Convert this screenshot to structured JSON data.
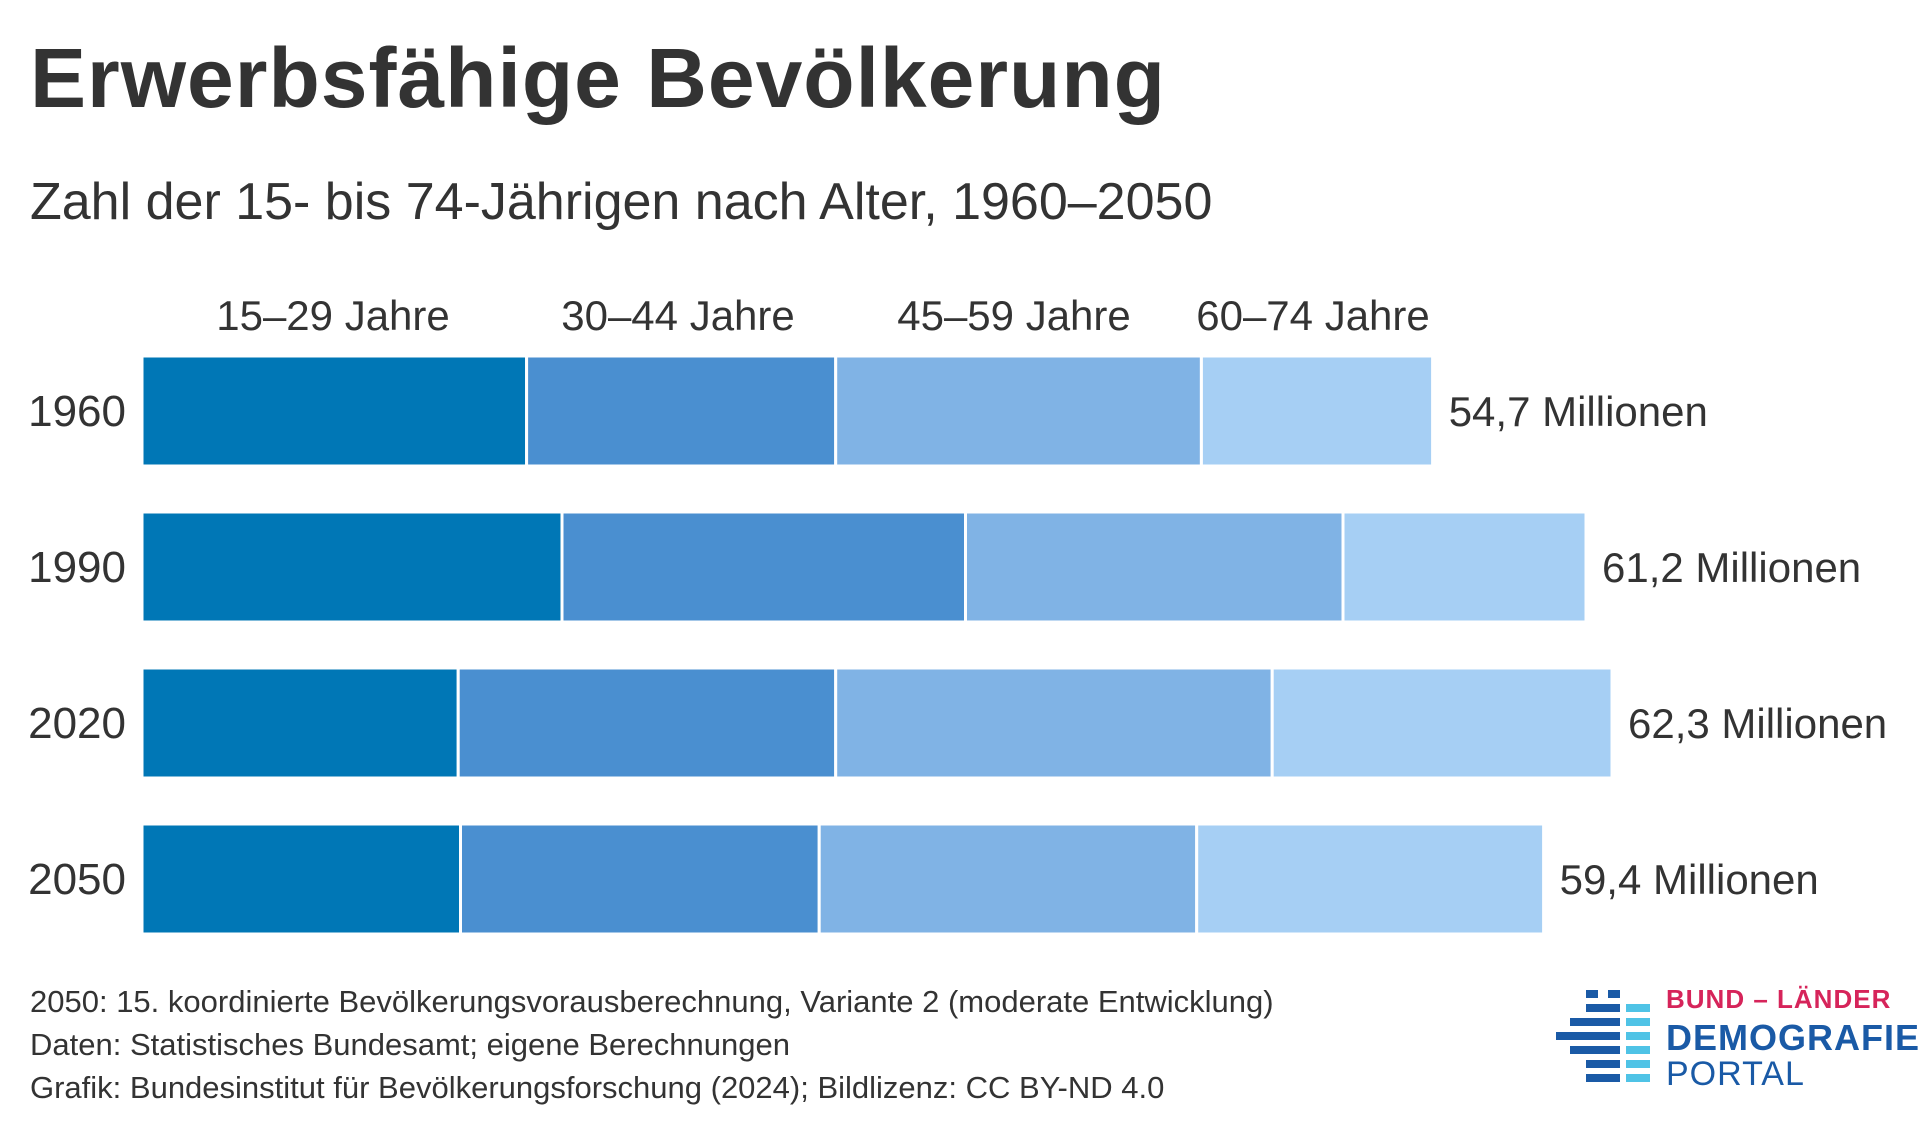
{
  "header": {
    "title": "Erwerbsfähige Bevölkerung",
    "subtitle": "Zahl der 15- bis 74-Jährigen nach Alter, 1960–2050"
  },
  "chart_data": {
    "type": "bar",
    "orientation": "horizontal",
    "stacked": true,
    "categories": [
      "1960",
      "1990",
      "2020",
      "2050"
    ],
    "series": [
      {
        "name": "15–29 Jahre",
        "color": "#0077b6",
        "values": [
          16.3,
          17.8,
          13.4,
          13.5
        ]
      },
      {
        "name": "30–44 Jahre",
        "color": "#4a8fd0",
        "values": [
          13.1,
          17.1,
          16.0,
          15.2
        ]
      },
      {
        "name": "45–59 Jahre",
        "color": "#80b3e5",
        "values": [
          15.5,
          16.0,
          18.5,
          16.0
        ]
      },
      {
        "name": "60–74 Jahre",
        "color": "#a6cff4",
        "values": [
          9.8,
          10.3,
          14.4,
          14.7
        ]
      }
    ],
    "totals": [
      "54,7 Millionen",
      "61,2 Millionen",
      "62,3 Millionen",
      "59,4 Millionen"
    ],
    "xlim": [
      0,
      62.3
    ],
    "legend": "top",
    "grid": false
  },
  "footer": {
    "notes": [
      "2050: 15. koordinierte Bevölkerungsvorausberechnung, Variante 2 (moderate Entwicklung)",
      "Daten: Statistisches Bundesamt; eigene Berechnungen",
      "Grafik: Bundesinstitut für Bevölkerungsforschung (2024); Bildlizenz: CC BY-ND 4.0"
    ]
  },
  "logo": {
    "line1": "BUND – LÄNDER",
    "line2": "DEMOGRAFIE",
    "line3": "PORTAL",
    "colors": {
      "accent": "#d6245a",
      "primary": "#1a5aa6",
      "light": "#4fc3e6"
    }
  }
}
